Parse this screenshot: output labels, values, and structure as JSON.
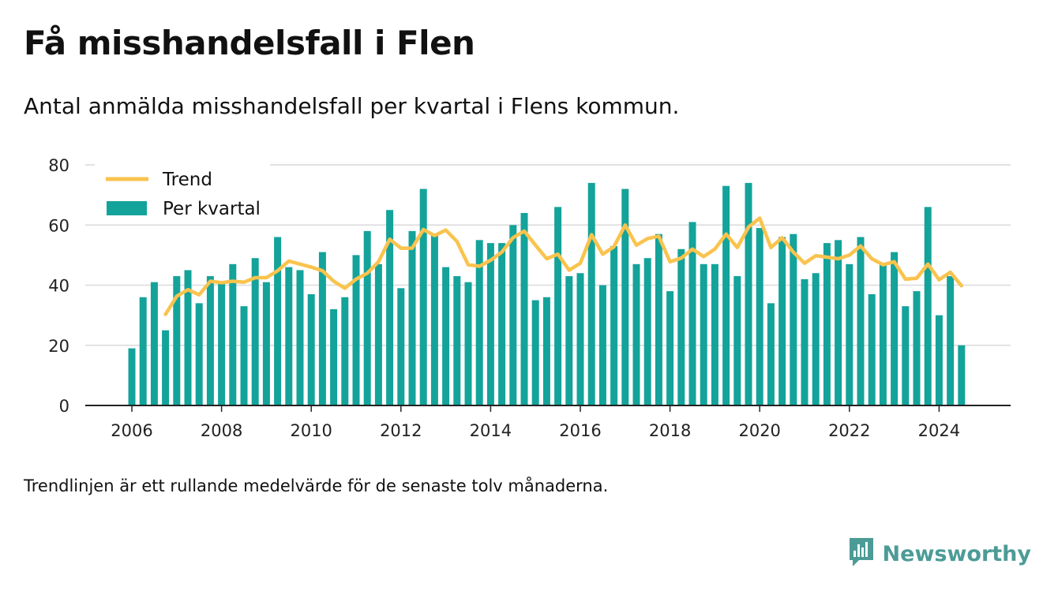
{
  "title": "Få misshandelsfall i Flen",
  "subtitle": "Antal anmälda misshandelsfall per kvartal i Flens kommun.",
  "footnote": "Trendlinjen är ett rullande medelvärde för de senaste tolv månaderna.",
  "brand": {
    "name": "Newsworthy",
    "icon": "newsworthy-logo-icon"
  },
  "colors": {
    "bars": "#13a39a",
    "trend": "#f9c34d",
    "grid": "#d9d9d9",
    "axis": "#222222",
    "brand": "#4c9b96"
  },
  "chart_data": {
    "type": "bar",
    "start": "2006-Q1",
    "xticks": [
      "2006",
      "2008",
      "2010",
      "2012",
      "2014",
      "2016",
      "2018",
      "2020",
      "2022",
      "2024"
    ],
    "yticks": [
      "0",
      "20",
      "40",
      "60",
      "80"
    ],
    "ylim": [
      0,
      80
    ],
    "grid": true,
    "legend_position": "top-left",
    "series": [
      {
        "name": "Per kvartal",
        "type": "bar",
        "values": [
          19,
          36,
          41,
          25,
          43,
          45,
          34,
          43,
          41,
          47,
          33,
          49,
          41,
          56,
          46,
          45,
          37,
          51,
          32,
          36,
          50,
          58,
          47,
          65,
          39,
          58,
          72,
          57,
          46,
          43,
          41,
          55,
          54,
          54,
          60,
          64,
          35,
          36,
          66,
          43,
          44,
          74,
          40,
          53,
          72,
          47,
          49,
          57,
          38,
          52,
          61,
          47,
          47,
          73,
          43,
          74,
          59,
          34,
          56,
          57,
          42,
          44,
          54,
          55,
          47,
          56,
          37,
          47,
          51,
          33,
          38,
          66,
          30,
          43,
          20
        ]
      },
      {
        "name": "Trend",
        "type": "line",
        "values": [
          null,
          null,
          null,
          30.3,
          36.3,
          38.5,
          36.8,
          41.3,
          40.8,
          41.3,
          41,
          42.5,
          42.5,
          44.8,
          48,
          47.0,
          46,
          44.8,
          41.3,
          39.0,
          42.0,
          44.0,
          47.8,
          55.3,
          52.3,
          52.3,
          58.5,
          56.5,
          58.3,
          54.5,
          46.8,
          46.3,
          48.3,
          51.0,
          55.8,
          58.0,
          53.3,
          48.8,
          50.3,
          45.0,
          47.3,
          56.8,
          50.3,
          52.8,
          60.0,
          53.3,
          55.5,
          56.3,
          47.8,
          49.0,
          52.0,
          49.5,
          52.0,
          57.0,
          52.5,
          59.3,
          62.3,
          52.5,
          55.8,
          51.0,
          47.3,
          49.8,
          49.3,
          48.8,
          50.0,
          53.0,
          48.8,
          46.8,
          47.8,
          42.0,
          42.3,
          47.0,
          41.8,
          44.3,
          39.8
        ]
      }
    ]
  }
}
